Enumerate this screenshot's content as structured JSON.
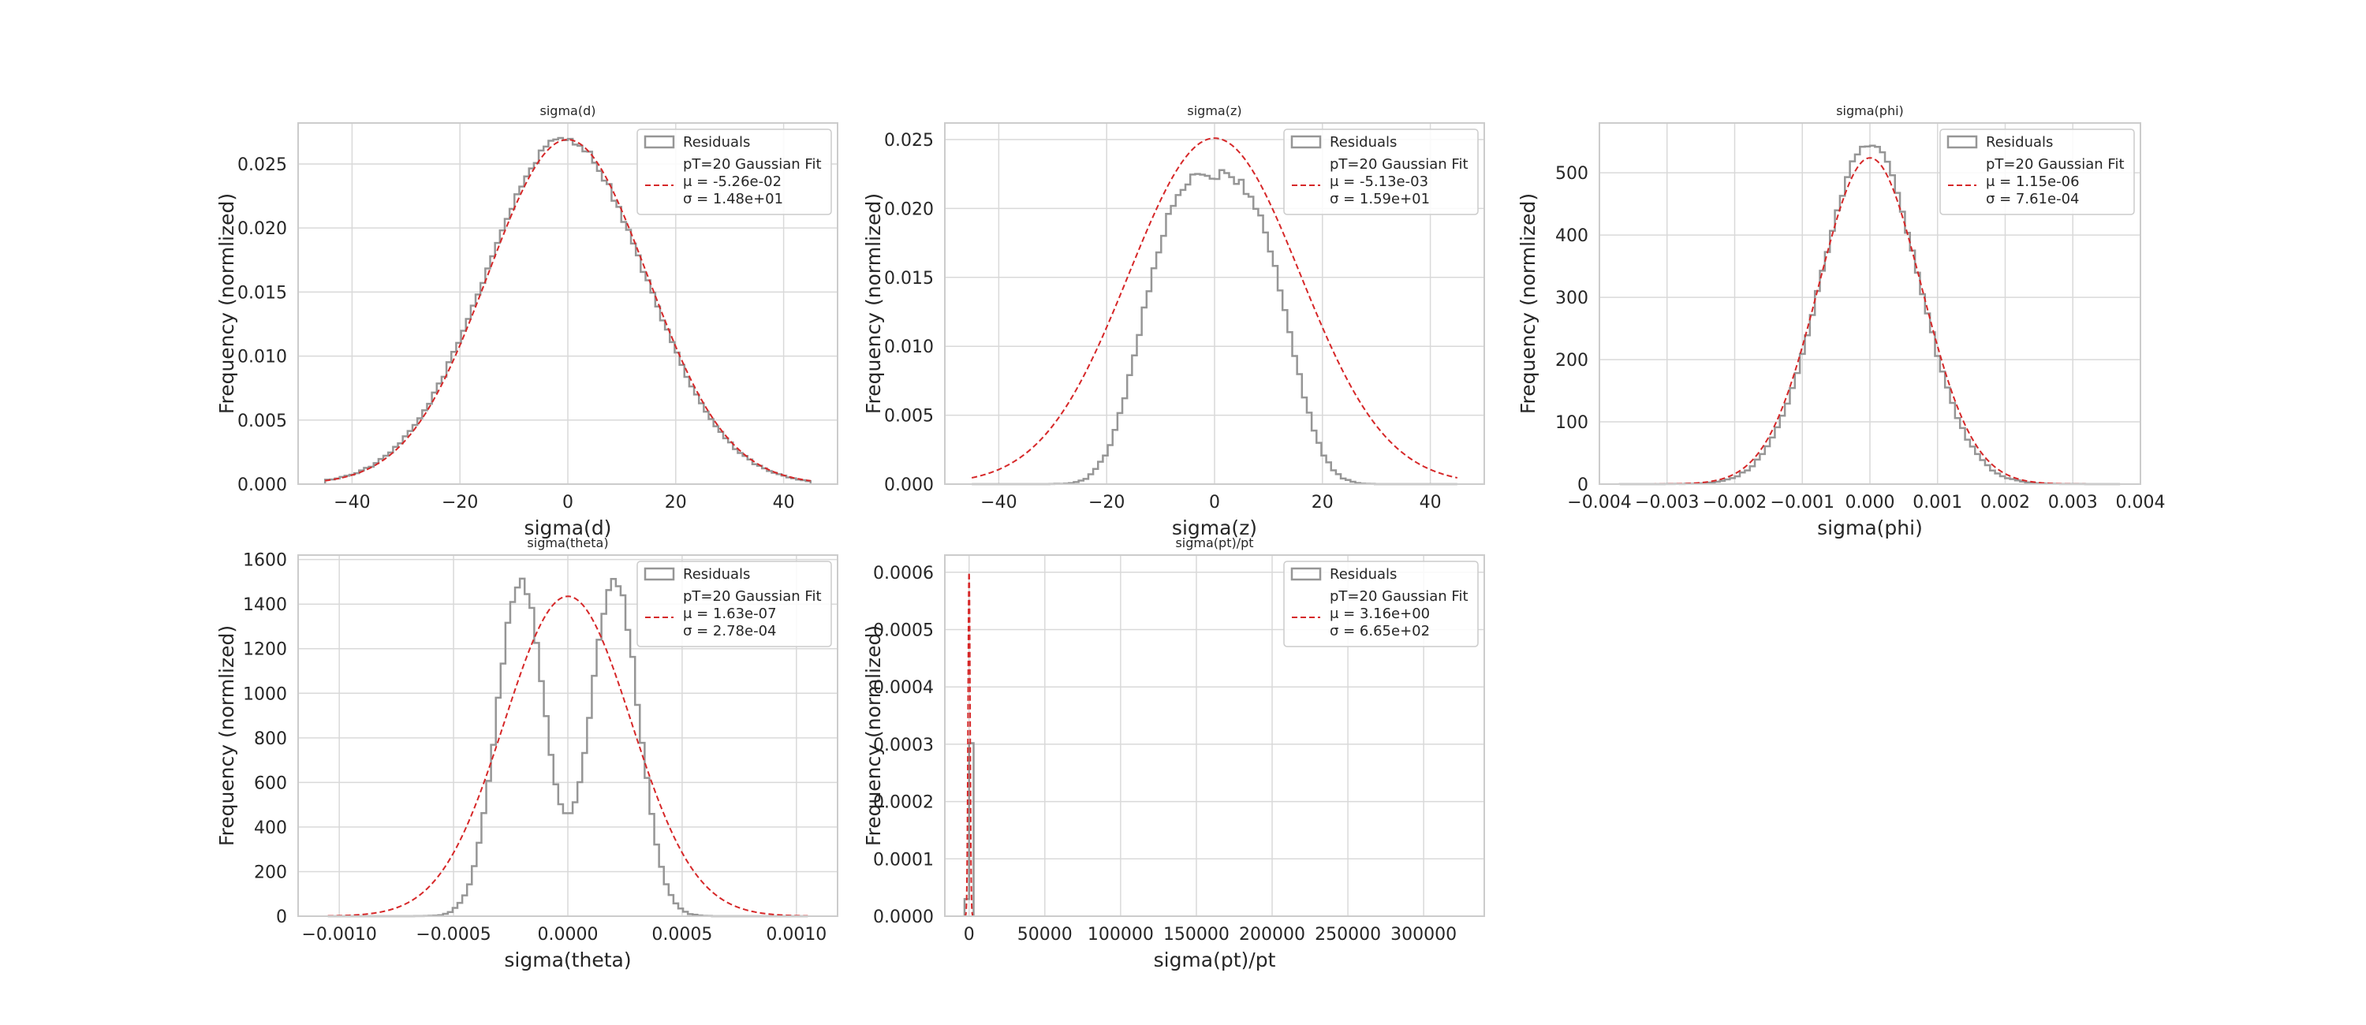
{
  "chart_data": [
    {
      "type": "histogram",
      "title": "sigma(d)",
      "xlabel": "sigma(d)",
      "ylabel": "Frequency (normlized)",
      "xlim": [
        -50,
        50
      ],
      "ylim": [
        0,
        0.0282
      ],
      "xticks": [
        -40,
        -20,
        0,
        20,
        40
      ],
      "xtick_labels": [
        "−40",
        "−20",
        "0",
        "20",
        "40"
      ],
      "yticks": [
        0,
        0.005,
        0.01,
        0.015,
        0.02,
        0.025
      ],
      "ytick_labels": [
        "0.000",
        "0.005",
        "0.010",
        "0.015",
        "0.020",
        "0.025"
      ],
      "grid": true,
      "legend_position": "top-right",
      "legend": {
        "hist_label": "Residuals",
        "fit_label": "pT=20 Gaussian Fit",
        "mu_text": "μ = -5.26e-02",
        "sigma_text": "σ = 1.48e+01"
      },
      "fit": {
        "mu": -0.0526,
        "sigma": 14.8,
        "peak": 0.0269,
        "range": [
          -45,
          45
        ]
      },
      "histogram": {
        "shape": "gaussian",
        "range": [
          -45,
          45
        ],
        "bins": 100,
        "mu": -0.5,
        "sigma": 14.8,
        "peak": 0.027,
        "noise_amplitude": 0.0003
      }
    },
    {
      "type": "histogram",
      "title": "sigma(z)",
      "xlabel": "sigma(z)",
      "ylabel": "Frequency (normlized)",
      "xlim": [
        -50,
        50
      ],
      "ylim": [
        0,
        0.0262
      ],
      "xticks": [
        -40,
        -20,
        0,
        20,
        40
      ],
      "xtick_labels": [
        "−40",
        "−20",
        "0",
        "20",
        "40"
      ],
      "yticks": [
        0,
        0.005,
        0.01,
        0.015,
        0.02,
        0.025
      ],
      "ytick_labels": [
        "0.000",
        "0.005",
        "0.010",
        "0.015",
        "0.020",
        "0.025"
      ],
      "grid": true,
      "legend_position": "top-right",
      "legend": {
        "hist_label": "Residuals",
        "fit_label": "pT=20 Gaussian Fit",
        "mu_text": "μ = -5.13e-03",
        "sigma_text": "σ = 1.59e+01"
      },
      "fit": {
        "mu": -0.00513,
        "sigma": 15.9,
        "peak": 0.0251,
        "range": [
          -45,
          45
        ]
      },
      "histogram": {
        "shape": "flat_top",
        "range": [
          -45,
          45
        ],
        "bins": 100,
        "mu": 0,
        "sigma": 12.5,
        "power": 3.2,
        "peak": 0.0224,
        "noise_amplitude": 0.0004
      }
    },
    {
      "type": "histogram",
      "title": "sigma(phi)",
      "xlabel": "sigma(phi)",
      "ylabel": "Frequency (normlized)",
      "xlim": [
        -0.004,
        0.004
      ],
      "ylim": [
        0,
        580
      ],
      "xticks": [
        -0.004,
        -0.003,
        -0.002,
        -0.001,
        0,
        0.001,
        0.002,
        0.003,
        0.004
      ],
      "xtick_labels": [
        "−0.004",
        "−0.003",
        "−0.002",
        "−0.001",
        "0.000",
        "0.001",
        "0.002",
        "0.003",
        "0.004"
      ],
      "yticks": [
        0,
        100,
        200,
        300,
        400,
        500
      ],
      "ytick_labels": [
        "0",
        "100",
        "200",
        "300",
        "400",
        "500"
      ],
      "grid": true,
      "legend_position": "top-right",
      "legend": {
        "hist_label": "Residuals",
        "fit_label": "pT=20 Gaussian Fit",
        "mu_text": "μ = 1.15e-06",
        "sigma_text": "σ = 7.61e-04"
      },
      "fit": {
        "mu": 1.15e-06,
        "sigma": 0.000761,
        "peak": 524,
        "range": [
          -0.0035,
          0.0035
        ]
      },
      "histogram": {
        "shape": "gaussian",
        "range": [
          -0.0037,
          0.0037
        ],
        "bins": 100,
        "mu": 0,
        "sigma": 0.00072,
        "peak": 548,
        "noise_amplitude": 6
      }
    },
    {
      "type": "histogram",
      "title": "sigma(theta)",
      "xlabel": "sigma(theta)",
      "ylabel": "Frequency (normlized)",
      "xlim": [
        -0.00118,
        0.00118
      ],
      "ylim": [
        0,
        1620
      ],
      "xticks": [
        -0.001,
        -0.0005,
        0,
        0.0005,
        0.001
      ],
      "xtick_labels": [
        "−0.0010",
        "−0.0005",
        "0.0000",
        "0.0005",
        "0.0010"
      ],
      "yticks": [
        0,
        200,
        400,
        600,
        800,
        1000,
        1200,
        1400,
        1600
      ],
      "ytick_labels": [
        "0",
        "200",
        "400",
        "600",
        "800",
        "1000",
        "1200",
        "1400",
        "1600"
      ],
      "grid": true,
      "legend_position": "top-right",
      "legend": {
        "hist_label": "Residuals",
        "fit_label": "pT=20 Gaussian Fit",
        "mu_text": "μ = 1.63e-07",
        "sigma_text": "σ = 2.78e-04"
      },
      "fit": {
        "mu": 1.63e-07,
        "sigma": 0.000278,
        "peak": 1435,
        "range": [
          -0.00105,
          0.00105
        ]
      },
      "histogram": {
        "shape": "double_peak",
        "range": [
          -0.00105,
          0.00105
        ],
        "bins": 100,
        "centers": [
          -0.000205,
          0.000205
        ],
        "sigma": 0.000105,
        "peak": 1510,
        "noise_amplitude": 25
      }
    },
    {
      "type": "histogram",
      "title": "sigma(pt)/pt",
      "xlabel": "sigma(pt)/pt",
      "ylabel": "Frequency (normlized)",
      "xlim": [
        -16000,
        340000
      ],
      "ylim": [
        0,
        0.00063
      ],
      "xticks": [
        0,
        50000,
        100000,
        150000,
        200000,
        250000,
        300000
      ],
      "xtick_labels": [
        "0",
        "50000",
        "100000",
        "150000",
        "200000",
        "250000",
        "300000"
      ],
      "yticks": [
        0,
        0.0001,
        0.0002,
        0.0003,
        0.0004,
        0.0005,
        0.0006
      ],
      "ytick_labels": [
        "0.0000",
        "0.0001",
        "0.0002",
        "0.0003",
        "0.0004",
        "0.0005",
        "0.0006"
      ],
      "grid": true,
      "legend_position": "top-right",
      "legend": {
        "hist_label": "Residuals",
        "fit_label": "pT=20 Gaussian Fit",
        "mu_text": "μ = 3.16e+00",
        "sigma_text": "σ = 6.65e+02"
      },
      "fit": {
        "mu": 3.16,
        "sigma": 665,
        "peak": 0.0006,
        "range": [
          -3500,
          3500
        ]
      },
      "histogram": {
        "shape": "bars",
        "edges": [
          -3000,
          0,
          3000
        ],
        "values": [
          3e-05,
          0.000302
        ]
      }
    }
  ],
  "colors": {
    "histogram": "#969696",
    "fit": "#d62728",
    "grid": "#d9d9d9",
    "frame": "#cccccc",
    "text": "#262626"
  }
}
